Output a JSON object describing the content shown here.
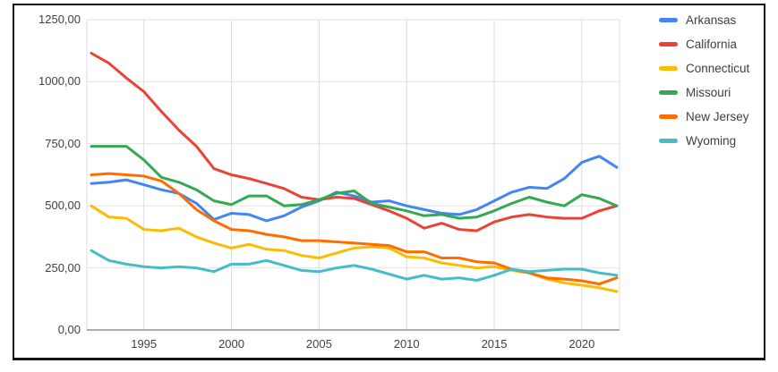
{
  "chart_data": {
    "type": "line",
    "title": "",
    "xlabel": "",
    "ylabel": "",
    "xlim": [
      1992,
      2022
    ],
    "ylim": [
      0,
      1250
    ],
    "grid": true,
    "legend_position": "right",
    "x": [
      1992,
      1993,
      1994,
      1995,
      1996,
      1997,
      1998,
      1999,
      2000,
      2001,
      2002,
      2003,
      2004,
      2005,
      2006,
      2007,
      2008,
      2009,
      2010,
      2011,
      2012,
      2013,
      2014,
      2015,
      2016,
      2017,
      2018,
      2019,
      2020,
      2021,
      2022
    ],
    "series": [
      {
        "name": "Arkansas",
        "color": "#4285f4",
        "values": [
          590,
          595,
          605,
          585,
          565,
          550,
          510,
          445,
          470,
          465,
          440,
          460,
          495,
          520,
          555,
          540,
          515,
          520,
          500,
          485,
          470,
          465,
          485,
          520,
          555,
          575,
          570,
          610,
          675,
          700,
          655
        ]
      },
      {
        "name": "California",
        "color": "#ea4335",
        "values": [
          1115,
          1075,
          1015,
          960,
          880,
          805,
          740,
          650,
          625,
          610,
          590,
          570,
          535,
          525,
          535,
          530,
          505,
          480,
          450,
          410,
          430,
          405,
          400,
          435,
          455,
          465,
          455,
          450,
          450,
          480,
          500
        ]
      },
      {
        "name": "Connecticut",
        "color": "#fbbc04",
        "values": [
          500,
          455,
          450,
          405,
          400,
          410,
          375,
          350,
          330,
          345,
          325,
          320,
          300,
          290,
          310,
          330,
          335,
          330,
          295,
          290,
          270,
          260,
          250,
          255,
          240,
          230,
          205,
          190,
          180,
          170,
          155
        ]
      },
      {
        "name": "Missouri",
        "color": "#34a853",
        "values": [
          740,
          740,
          740,
          685,
          615,
          595,
          565,
          520,
          505,
          540,
          540,
          500,
          505,
          525,
          550,
          560,
          510,
          495,
          480,
          460,
          465,
          450,
          455,
          480,
          510,
          535,
          515,
          500,
          545,
          530,
          500
        ]
      },
      {
        "name": "New Jersey",
        "color": "#ff6d01",
        "values": [
          625,
          630,
          625,
          620,
          600,
          550,
          485,
          440,
          405,
          400,
          385,
          375,
          360,
          360,
          355,
          350,
          345,
          340,
          315,
          315,
          290,
          290,
          275,
          270,
          245,
          230,
          210,
          205,
          198,
          185,
          210
        ]
      },
      {
        "name": "Wyoming",
        "color": "#46bdc6",
        "values": [
          320,
          280,
          265,
          255,
          250,
          255,
          250,
          235,
          265,
          265,
          280,
          260,
          240,
          235,
          250,
          260,
          245,
          225,
          205,
          220,
          205,
          210,
          200,
          220,
          245,
          235,
          240,
          245,
          245,
          230,
          220
        ]
      }
    ],
    "y_axis": {
      "tick_values": [
        0,
        250,
        500,
        750,
        1000,
        1250
      ],
      "tick_labels": [
        "0,00",
        "250,00",
        "500,00",
        "750,00",
        "1000,00",
        "1250,00"
      ]
    },
    "x_axis": {
      "tick_values": [
        1995,
        2000,
        2005,
        2010,
        2015,
        2020
      ],
      "tick_labels": [
        "1995",
        "2000",
        "2005",
        "2010",
        "2015",
        "2020"
      ]
    },
    "legend": [
      "Arkansas",
      "California",
      "Connecticut",
      "Missouri",
      "New Jersey",
      "Wyoming"
    ]
  },
  "style": {
    "gridline_color": "#e2e2e2",
    "vertical_gridline_color": "#dcdcdc",
    "axis_line_color": "#8f8f8f",
    "border_color": "#141414",
    "background": "#ffffff"
  }
}
